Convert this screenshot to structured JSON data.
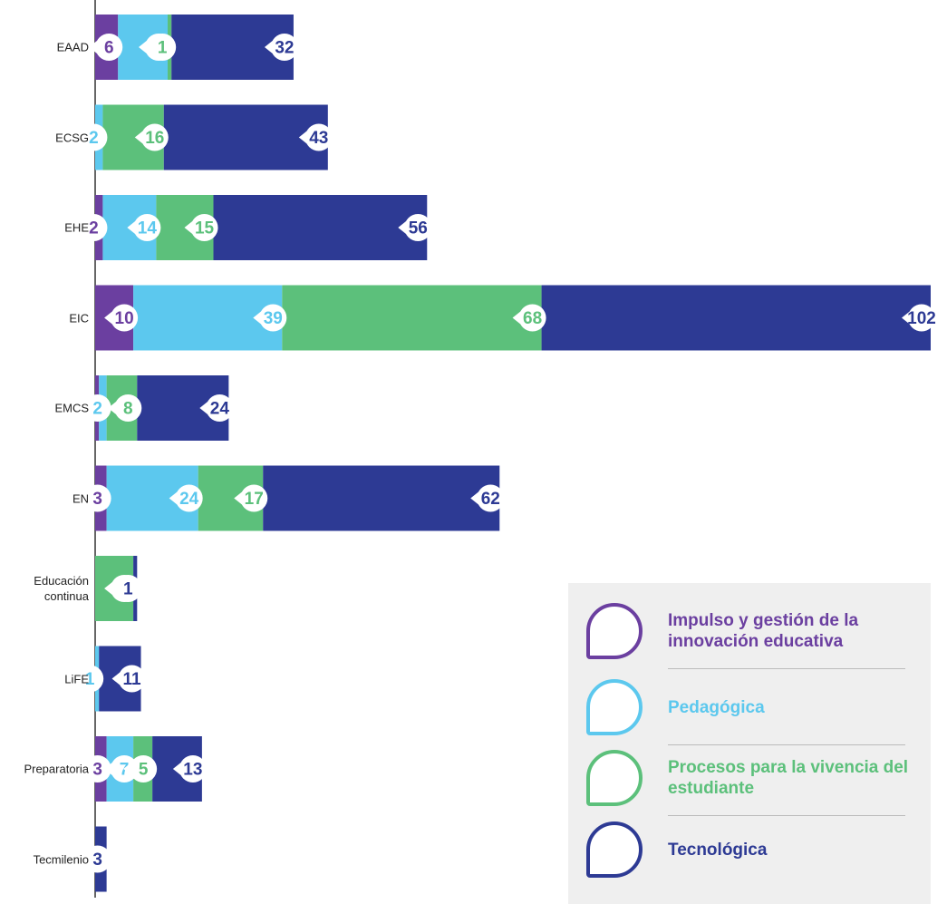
{
  "chart_data": {
    "type": "stacked-bar-horizontal",
    "categories": [
      "EAAD",
      "ECSG",
      "EHE",
      "EIC",
      "EMCS",
      "EN",
      "Educación continua",
      "LiFE",
      "Preparatoria",
      "Tecmilenio"
    ],
    "series": [
      {
        "name": "Impulso y gestión de la innovación educativa",
        "color": "#6b3fa0",
        "values": [
          6,
          null,
          2,
          10,
          1,
          3,
          null,
          null,
          3,
          null
        ]
      },
      {
        "name": "Pedagógica",
        "color": "#5cc8ee",
        "values": [
          13,
          2,
          14,
          39,
          2,
          24,
          null,
          1,
          7,
          null
        ]
      },
      {
        "name": "Procesos para la vivencia del estudiante",
        "color": "#5cc07b",
        "values": [
          1,
          16,
          15,
          68,
          8,
          17,
          10,
          null,
          5,
          null
        ]
      },
      {
        "name": "Tecnológica",
        "color": "#2d3a94",
        "values": [
          32,
          43,
          56,
          102,
          24,
          62,
          1,
          11,
          13,
          3
        ]
      }
    ],
    "xlim": [
      0,
      219
    ],
    "legend": "bottom-right"
  }
}
